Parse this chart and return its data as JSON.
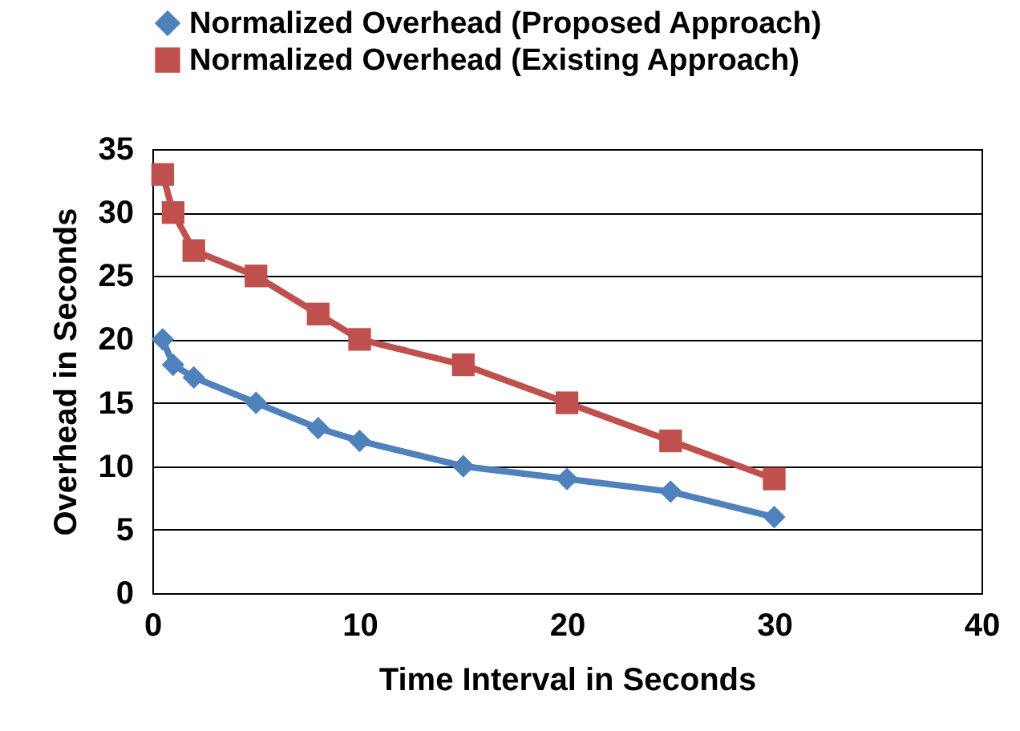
{
  "chart_data": {
    "type": "line",
    "xlabel": "Time Interval in Seconds",
    "ylabel": "Overhead in Seconds",
    "x": [
      0.5,
      1,
      2,
      5,
      8,
      10,
      15,
      20,
      25,
      30
    ],
    "series": [
      {
        "name": "Normalized Overhead (Proposed Approach)",
        "color": "#4f81bd",
        "marker": "diamond",
        "values": [
          20,
          18,
          17,
          15,
          13,
          12,
          10,
          9,
          8,
          6
        ]
      },
      {
        "name": "Normalized Overhead (Existing Approach)",
        "color": "#c0504d",
        "marker": "square",
        "values": [
          33,
          30,
          27,
          25,
          22,
          20,
          18,
          15,
          12,
          9
        ]
      }
    ],
    "xlim": [
      0,
      40
    ],
    "xticks": [
      0,
      10,
      20,
      30,
      40
    ],
    "ylim": [
      0,
      35
    ],
    "yticks": [
      0,
      5,
      10,
      15,
      20,
      25,
      30,
      35
    ],
    "grid": "y",
    "legend": "top",
    "line_style": "solid"
  }
}
